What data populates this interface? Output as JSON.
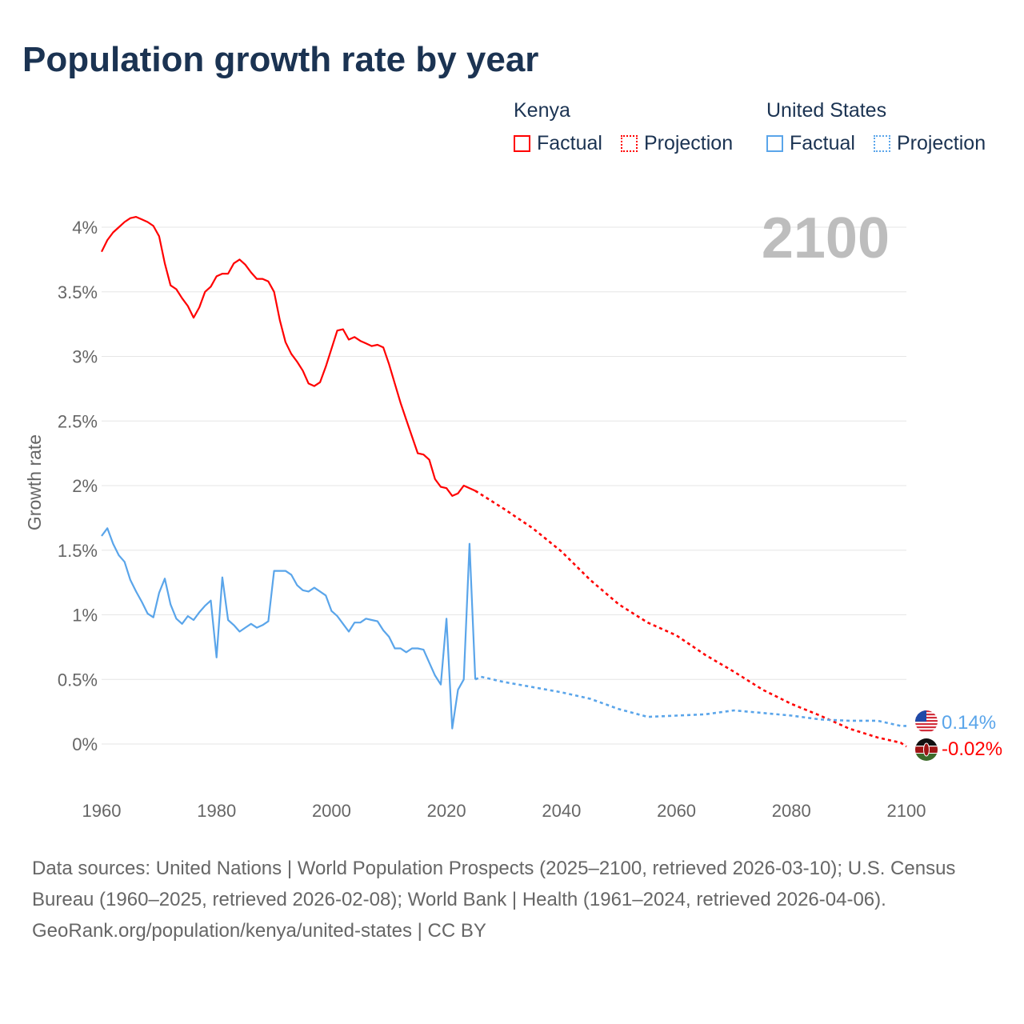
{
  "title": "Population growth rate by year",
  "legend": {
    "groups": [
      {
        "name": "Kenya",
        "color": "#ff0000",
        "items": [
          "Factual",
          "Projection"
        ]
      },
      {
        "name": "United States",
        "color": "#5aa5ea",
        "items": [
          "Factual",
          "Projection"
        ]
      }
    ]
  },
  "year_label": "2100",
  "chart_data": {
    "type": "line",
    "title": "Population growth rate by year",
    "xlabel": "",
    "ylabel": "Growth rate",
    "xlim": [
      1960,
      2100
    ],
    "ylim": [
      -0.25,
      4.2
    ],
    "x_ticks": [
      "1960",
      "1980",
      "2000",
      "2020",
      "2040",
      "2060",
      "2080",
      "2100"
    ],
    "y_ticks": [
      "0%",
      "0.5%",
      "1%",
      "1.5%",
      "2%",
      "2.5%",
      "3%",
      "3.5%",
      "4%"
    ],
    "y_tick_values": [
      0,
      0.5,
      1,
      1.5,
      2,
      2.5,
      3,
      3.5,
      4
    ],
    "grid": true,
    "series": [
      {
        "name": "Kenya",
        "color": "#ff0000",
        "end_label": "-0.02%",
        "factual_start": 1960,
        "factual": [
          3.81,
          3.9,
          3.96,
          4.0,
          4.04,
          4.07,
          4.08,
          4.06,
          4.04,
          4.01,
          3.93,
          3.72,
          3.55,
          3.52,
          3.45,
          3.39,
          3.3,
          3.38,
          3.5,
          3.54,
          3.62,
          3.64,
          3.64,
          3.72,
          3.75,
          3.71,
          3.65,
          3.6,
          3.6,
          3.58,
          3.5,
          3.28,
          3.11,
          3.02,
          2.96,
          2.89,
          2.79,
          2.77,
          2.8,
          2.92,
          3.06,
          3.2,
          3.21,
          3.13,
          3.15,
          3.12,
          3.1,
          3.08,
          3.09,
          3.07,
          2.94,
          2.79,
          2.64,
          2.51,
          2.38,
          2.25,
          2.24,
          2.2,
          2.05,
          1.99,
          1.98,
          1.92,
          1.94,
          2.0,
          1.98,
          1.96
        ],
        "projection_years": [
          2025,
          2030,
          2035,
          2040,
          2045,
          2050,
          2055,
          2060,
          2065,
          2070,
          2075,
          2080,
          2085,
          2090,
          2095,
          2099,
          2100
        ],
        "projection": [
          1.96,
          1.82,
          1.67,
          1.49,
          1.27,
          1.08,
          0.94,
          0.84,
          0.69,
          0.56,
          0.42,
          0.31,
          0.22,
          0.12,
          0.05,
          0.01,
          -0.02
        ]
      },
      {
        "name": "United States",
        "color": "#5aa5ea",
        "end_label": "0.14%",
        "factual_start": 1960,
        "factual": [
          1.61,
          1.67,
          1.55,
          1.46,
          1.41,
          1.27,
          1.18,
          1.1,
          1.01,
          0.98,
          1.17,
          1.28,
          1.08,
          0.97,
          0.93,
          0.99,
          0.96,
          1.02,
          1.07,
          1.11,
          0.67,
          1.29,
          0.96,
          0.92,
          0.87,
          0.9,
          0.93,
          0.9,
          0.92,
          0.95,
          1.34,
          1.34,
          1.34,
          1.31,
          1.23,
          1.19,
          1.18,
          1.21,
          1.18,
          1.15,
          1.03,
          0.99,
          0.93,
          0.87,
          0.94,
          0.94,
          0.97,
          0.96,
          0.95,
          0.88,
          0.83,
          0.74,
          0.74,
          0.71,
          0.74,
          0.74,
          0.73,
          0.63,
          0.53,
          0.46,
          0.97,
          0.12,
          0.42,
          0.5,
          1.55,
          0.5
        ],
        "projection_years": [
          2025,
          2026,
          2030,
          2035,
          2040,
          2045,
          2050,
          2055,
          2060,
          2065,
          2070,
          2075,
          2080,
          2085,
          2090,
          2095,
          2099,
          2100
        ],
        "projection": [
          0.5,
          0.52,
          0.48,
          0.44,
          0.4,
          0.35,
          0.27,
          0.21,
          0.22,
          0.23,
          0.26,
          0.24,
          0.22,
          0.19,
          0.18,
          0.18,
          0.14,
          0.14
        ]
      }
    ]
  },
  "footer": {
    "sources": "Data sources: United Nations | World Population Prospects (2025–2100, retrieved 2026-03-10); U.S. Census Bureau (1960–2025, retrieved 2026-02-08); World Bank | Health (1961–2024, retrieved 2026-04-06).",
    "credit": "GeoRank.org/population/kenya/united-states | CC BY"
  }
}
